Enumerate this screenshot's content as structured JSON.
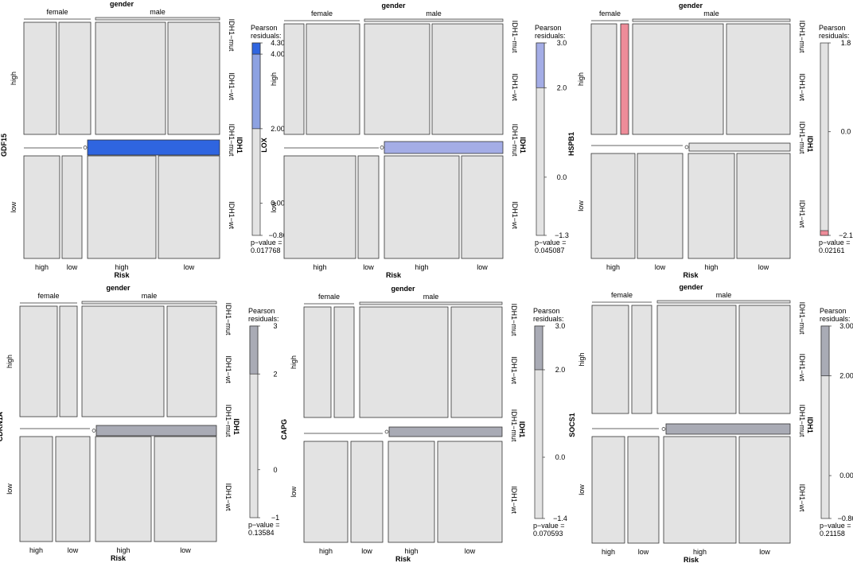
{
  "chart_data": [
    {
      "type": "mosaic",
      "gene": "GDF15",
      "x_var": "Risk",
      "top_var": "gender",
      "right_var": "IDH1",
      "x_levels": [
        "high",
        "low",
        "high",
        "low"
      ],
      "top_levels": [
        "female",
        "male"
      ],
      "y_levels": [
        "high",
        "low"
      ],
      "right_levels": [
        "IDH1−mut",
        "IDH1−wt",
        "IDH1−mut",
        "IDH1−wt"
      ],
      "legend_title": "Pearson\nresiduals:",
      "legend_ticks": [
        "4.30",
        "4.00",
        "2.00",
        "0.00",
        "−0.86"
      ],
      "legend_min": -0.86,
      "legend_max": 4.3,
      "p_value_label": "p−value =",
      "p_value": "0.017768",
      "highlight_color": "#2f65e0",
      "highlight_color_mid": "#8da2e2",
      "highlight_sign": "pos"
    },
    {
      "type": "mosaic",
      "gene": "LOX",
      "x_var": "Risk",
      "top_var": "gender",
      "right_var": "IDH1",
      "x_levels": [
        "high",
        "low",
        "high",
        "low"
      ],
      "top_levels": [
        "female",
        "male"
      ],
      "y_levels": [
        "high",
        "low"
      ],
      "right_levels": [
        "IDH1−mut",
        "IDH1−wt",
        "IDH1−mut",
        "IDH1−wt"
      ],
      "legend_title": "Pearson\nresiduals:",
      "legend_ticks": [
        "3.0",
        "2.0",
        "0.0",
        "−1.3"
      ],
      "legend_min": -1.3,
      "legend_max": 3.0,
      "p_value_label": "p−value =",
      "p_value": "0.045087",
      "highlight_color": "#a4ade6",
      "highlight_sign": "pos"
    },
    {
      "type": "mosaic",
      "gene": "HSPB1",
      "x_var": "Risk",
      "top_var": "gender",
      "right_var": "IDH1",
      "x_levels": [
        "high",
        "low",
        "high",
        "low"
      ],
      "top_levels": [
        "female",
        "male"
      ],
      "y_levels": [
        "high",
        "low"
      ],
      "right_levels": [
        "IDH1−mut",
        "IDH1−wt",
        "IDH1−mut",
        "IDH1−wt"
      ],
      "legend_title": "Pearson\nresiduals:",
      "legend_ticks": [
        "1.8",
        "0.0",
        "−2.1"
      ],
      "legend_min": -2.1,
      "legend_max": 1.8,
      "p_value_label": "p−value =",
      "p_value": "0.02161",
      "highlight_color": "#ee8c99",
      "highlight_sign": "neg"
    },
    {
      "type": "mosaic",
      "gene": "CDKN1A",
      "x_var": "Risk",
      "top_var": "gender",
      "right_var": "IDH1",
      "x_levels": [
        "high",
        "low",
        "high",
        "low"
      ],
      "top_levels": [
        "female",
        "male"
      ],
      "y_levels": [
        "high",
        "low"
      ],
      "right_levels": [
        "IDH1−mut",
        "IDH1−wt",
        "IDH1−mut",
        "IDH1−wt"
      ],
      "legend_title": "Pearson\nresiduals:",
      "legend_ticks": [
        "3",
        "2",
        "0",
        "−1"
      ],
      "legend_min": -1,
      "legend_max": 3,
      "p_value_label": "p−value =",
      "p_value": "0.13584",
      "highlight_color": "#a9abb5",
      "highlight_sign": "pos"
    },
    {
      "type": "mosaic",
      "gene": "CAPG",
      "x_var": "Risk",
      "top_var": "gender",
      "right_var": "IDH1",
      "x_levels": [
        "high",
        "low",
        "high",
        "low"
      ],
      "top_levels": [
        "female",
        "male"
      ],
      "y_levels": [
        "high",
        "low"
      ],
      "right_levels": [
        "IDH1−mut",
        "IDH1−wt",
        "IDH1−mut",
        "IDH1−wt"
      ],
      "legend_title": "Pearson\nresiduals:",
      "legend_ticks": [
        "3.0",
        "2.0",
        "0.0",
        "−1.4"
      ],
      "legend_min": -1.4,
      "legend_max": 3.0,
      "p_value_label": "p−value =",
      "p_value": "0.070593",
      "highlight_color": "#a9abb5",
      "highlight_sign": "pos"
    },
    {
      "type": "mosaic",
      "gene": "SOCS1",
      "x_var": "Risk",
      "top_var": "gender",
      "right_var": "IDH1",
      "x_levels": [
        "high",
        "low",
        "high",
        "low"
      ],
      "top_levels": [
        "female",
        "male"
      ],
      "y_levels": [
        "high",
        "low"
      ],
      "right_levels": [
        "IDH1−mut",
        "IDH1−wt",
        "IDH1−mut",
        "IDH1−wt"
      ],
      "legend_title": "Pearson\nresiduals:",
      "legend_ticks": [
        "3.00",
        "2.00",
        "0.00",
        "−0.86"
      ],
      "legend_min": -0.86,
      "legend_max": 3.0,
      "p_value_label": "p−value =",
      "p_value": "0.21158",
      "highlight_color": "#a9abb5",
      "highlight_sign": "pos"
    }
  ]
}
